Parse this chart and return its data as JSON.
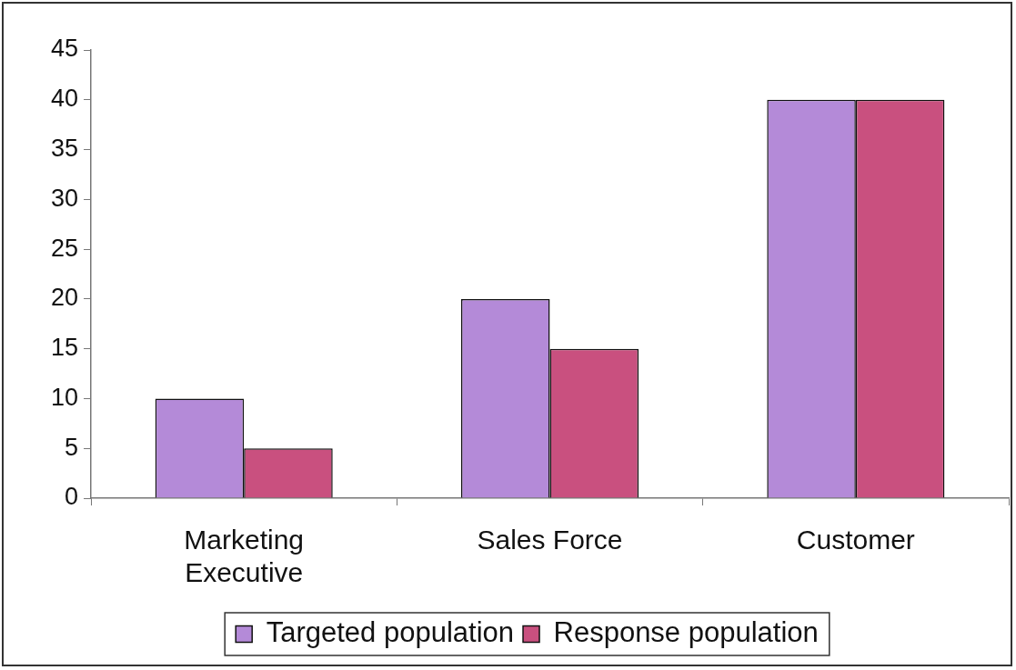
{
  "chart_data": {
    "type": "bar",
    "categories": [
      "Marketing Executive",
      "Sales Force",
      "Customer"
    ],
    "series": [
      {
        "name": "Targeted population",
        "color": "#b48ad8",
        "values": [
          10,
          20,
          40
        ]
      },
      {
        "name": "Response population",
        "color": "#c9507f",
        "values": [
          5,
          15,
          40
        ]
      }
    ],
    "ylim": [
      0,
      45
    ],
    "yticks": [
      0,
      5,
      10,
      15,
      20,
      25,
      30,
      35,
      40,
      45
    ],
    "grid": false,
    "legend": "bottom"
  }
}
